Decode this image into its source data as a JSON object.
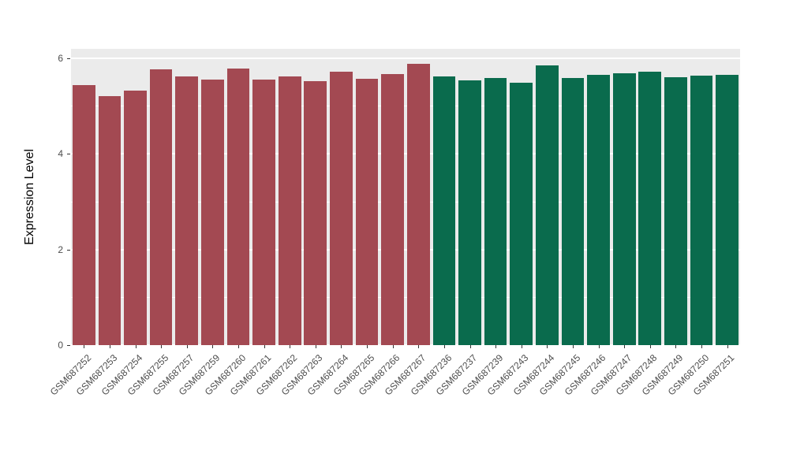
{
  "chart_data": {
    "type": "bar",
    "title": "",
    "xlabel": "",
    "ylabel": "Expression Level",
    "ylim": [
      0,
      6
    ],
    "yticks": [
      0,
      2,
      4,
      6
    ],
    "grid": "on",
    "legend_position": "none",
    "panel_bg": "#EBEBEB",
    "grid_color": "#FFFFFF",
    "groups": [
      {
        "name": "group-red",
        "color": "#A34952",
        "categories": [
          "GSM687252",
          "GSM687253",
          "GSM687254",
          "GSM687255",
          "GSM687257",
          "GSM687259",
          "GSM687260",
          "GSM687261",
          "GSM687262",
          "GSM687263",
          "GSM687264",
          "GSM687265",
          "GSM687266",
          "GSM687267"
        ],
        "values": [
          5.44,
          5.21,
          5.33,
          5.77,
          5.62,
          5.56,
          5.78,
          5.56,
          5.62,
          5.52,
          5.72,
          5.57,
          5.67,
          5.88
        ]
      },
      {
        "name": "group-green",
        "color": "#0A6B4D",
        "categories": [
          "GSM687236",
          "GSM687237",
          "GSM687239",
          "GSM687243",
          "GSM687244",
          "GSM687245",
          "GSM687246",
          "GSM687247",
          "GSM687248",
          "GSM687249",
          "GSM687250",
          "GSM687251"
        ],
        "values": [
          5.62,
          5.54,
          5.59,
          5.49,
          5.85,
          5.59,
          5.65,
          5.69,
          5.72,
          5.6,
          5.63,
          5.65
        ]
      }
    ]
  }
}
